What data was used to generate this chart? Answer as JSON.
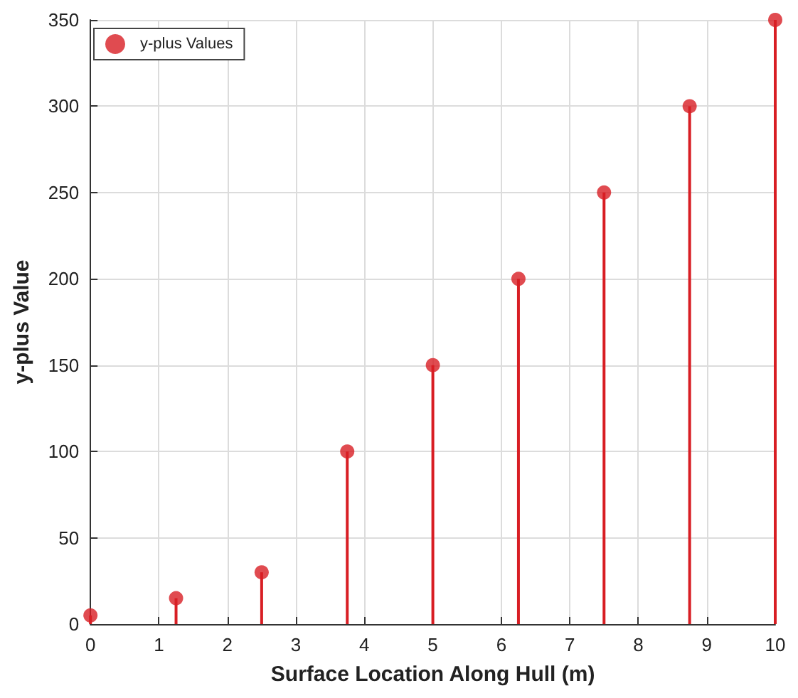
{
  "chart_data": {
    "type": "lollipop",
    "xlabel": "Surface Location Along Hull (m)",
    "ylabel": "y-plus Value",
    "x": [
      0,
      1.25,
      2.5,
      3.75,
      5,
      6.25,
      7.5,
      8.75,
      10
    ],
    "series": [
      {
        "name": "y-plus Values",
        "color": "#d81e24",
        "values": [
          5,
          15,
          30,
          100,
          150,
          200,
          250,
          300,
          350
        ]
      }
    ],
    "xlim": [
      0,
      10
    ],
    "xticks": [
      0,
      1,
      2,
      3,
      4,
      5,
      6,
      7,
      8,
      9,
      10
    ],
    "ylim": [
      0,
      350
    ],
    "yticks": [
      0,
      50,
      100,
      150,
      200,
      250,
      300,
      350
    ],
    "grid": true,
    "legend": "top left",
    "marker": "circle"
  }
}
